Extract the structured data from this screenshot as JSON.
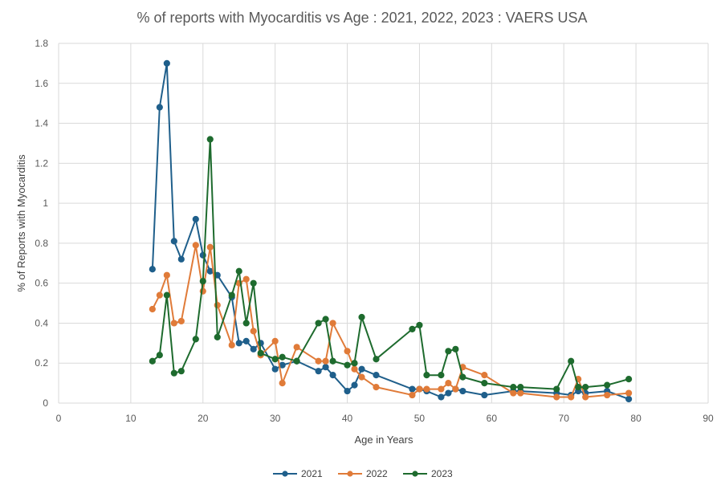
{
  "chart_data": {
    "type": "line",
    "title": "% of reports with Myocarditis vs Age : 2021, 2022, 2023 : VAERS USA",
    "xlabel": "Age in Years",
    "ylabel": "% of Reports with Myocarditis",
    "xlim": [
      0,
      90
    ],
    "ylim": [
      0,
      1.8
    ],
    "xticks": [
      0,
      10,
      20,
      30,
      40,
      50,
      60,
      70,
      80,
      90
    ],
    "yticks": [
      0,
      0.2,
      0.4,
      0.6,
      0.8,
      1,
      1.2,
      1.4,
      1.6,
      1.8
    ],
    "grid": true,
    "legend_position": "bottom",
    "series": [
      {
        "name": "2021",
        "color": "#1f5f8b",
        "x": [
          13,
          14,
          15,
          16,
          17,
          19,
          20,
          21,
          22,
          24,
          25,
          26,
          27,
          28,
          30,
          31,
          33,
          36,
          37,
          38,
          40,
          41,
          42,
          44,
          49,
          50,
          51,
          53,
          54,
          55,
          56,
          59,
          63,
          64,
          69,
          71,
          72,
          73,
          76,
          79
        ],
        "y": [
          0.67,
          1.48,
          1.7,
          0.81,
          0.72,
          0.92,
          0.74,
          0.66,
          0.64,
          0.53,
          0.3,
          0.31,
          0.27,
          0.3,
          0.17,
          0.19,
          0.21,
          0.16,
          0.18,
          0.14,
          0.06,
          0.09,
          0.17,
          0.14,
          0.07,
          0.07,
          0.06,
          0.03,
          0.05,
          0.07,
          0.06,
          0.04,
          0.06,
          0.06,
          0.05,
          0.04,
          0.06,
          0.05,
          0.06,
          0.02
        ]
      },
      {
        "name": "2022",
        "color": "#e07b39",
        "x": [
          13,
          14,
          15,
          16,
          17,
          19,
          20,
          21,
          22,
          24,
          25,
          26,
          27,
          28,
          30,
          31,
          33,
          36,
          37,
          38,
          40,
          41,
          42,
          44,
          49,
          50,
          51,
          53,
          54,
          55,
          56,
          59,
          63,
          64,
          69,
          71,
          72,
          73,
          76,
          79
        ],
        "y": [
          0.47,
          0.54,
          0.64,
          0.4,
          0.41,
          0.79,
          0.56,
          0.78,
          0.49,
          0.29,
          0.6,
          0.62,
          0.36,
          0.24,
          0.31,
          0.1,
          0.28,
          0.21,
          0.21,
          0.4,
          0.26,
          0.17,
          0.13,
          0.08,
          0.04,
          0.07,
          0.07,
          0.07,
          0.1,
          0.07,
          0.18,
          0.14,
          0.05,
          0.05,
          0.03,
          0.03,
          0.12,
          0.03,
          0.04,
          0.05
        ]
      },
      {
        "name": "2023",
        "color": "#1e6b2e",
        "x": [
          13,
          14,
          15,
          16,
          17,
          19,
          20,
          21,
          22,
          24,
          25,
          26,
          27,
          28,
          30,
          31,
          33,
          36,
          37,
          38,
          40,
          41,
          42,
          44,
          49,
          50,
          51,
          53,
          54,
          55,
          56,
          59,
          63,
          64,
          69,
          71,
          72,
          73,
          76,
          79
        ],
        "y": [
          0.21,
          0.24,
          0.54,
          0.15,
          0.16,
          0.32,
          0.61,
          1.32,
          0.33,
          0.54,
          0.66,
          0.4,
          0.6,
          0.25,
          0.22,
          0.23,
          0.21,
          0.4,
          0.42,
          0.21,
          0.19,
          0.2,
          0.43,
          0.22,
          0.37,
          0.39,
          0.14,
          0.14,
          0.26,
          0.27,
          0.13,
          0.1,
          0.08,
          0.08,
          0.07,
          0.21,
          0.08,
          0.08,
          0.09,
          0.12
        ]
      }
    ]
  }
}
